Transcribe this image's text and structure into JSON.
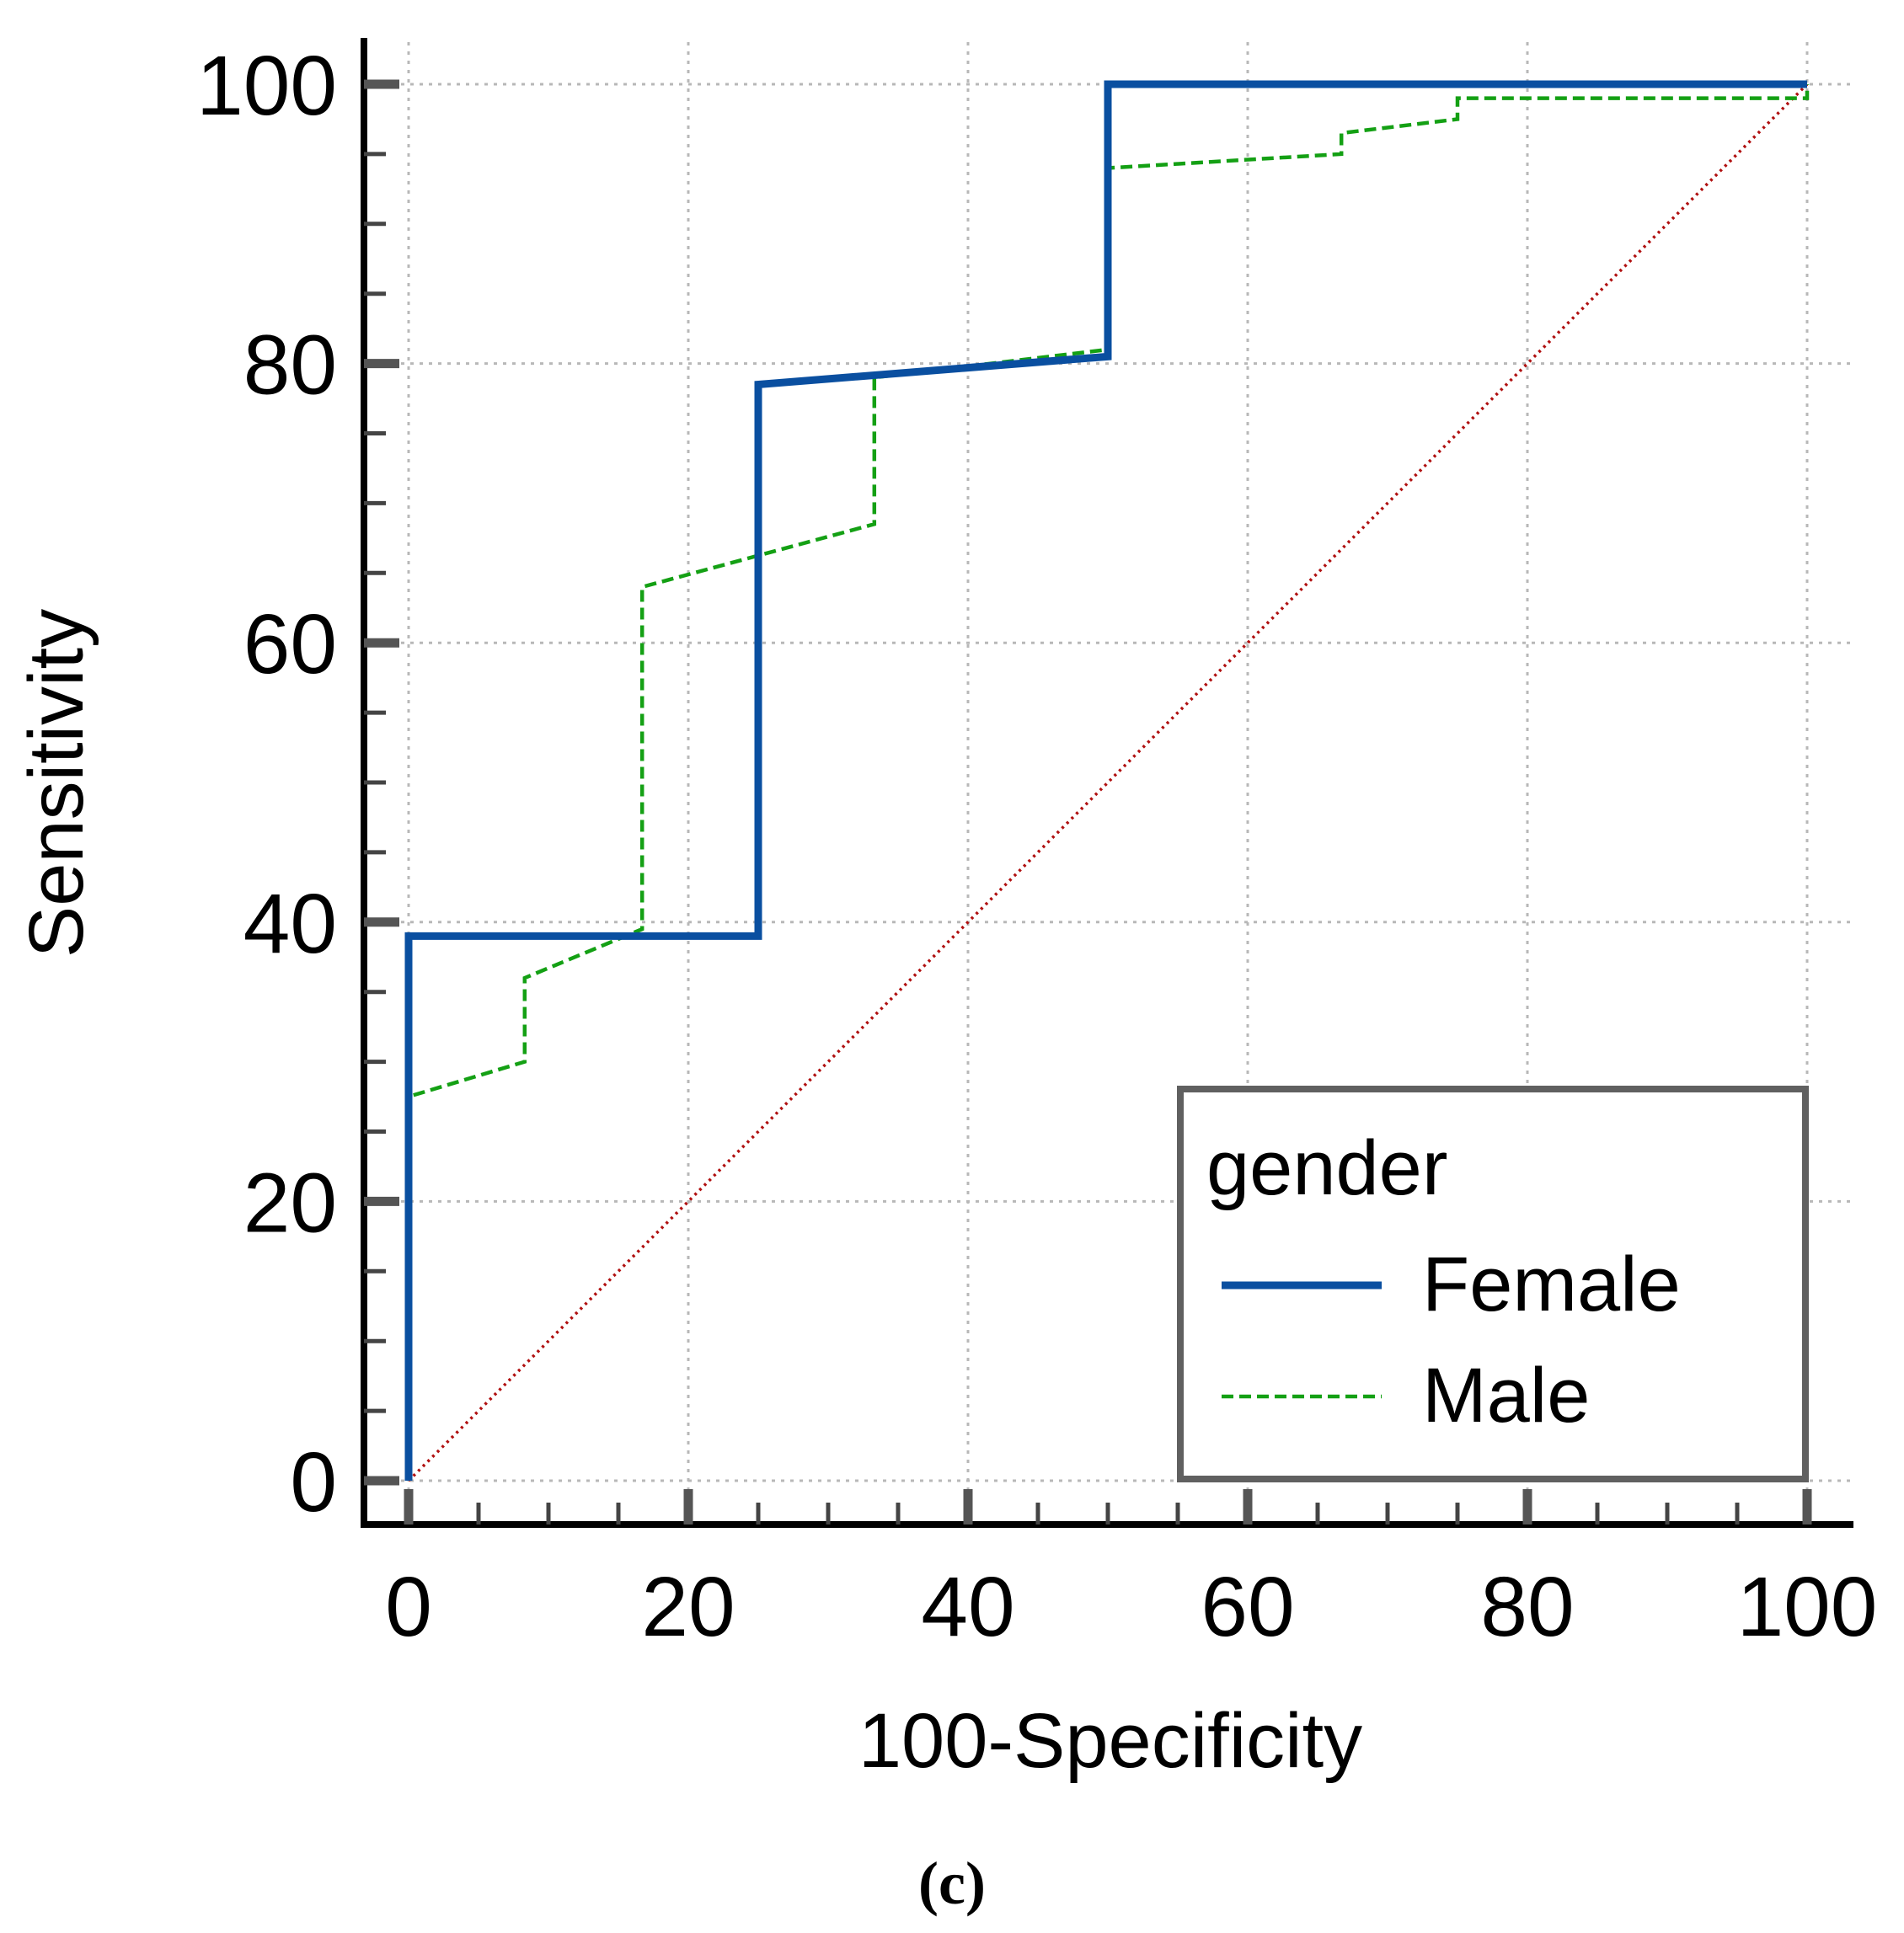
{
  "chart_data": {
    "type": "line",
    "xlabel": "100-Specificity",
    "ylabel": "Sensitivity",
    "xlim": [
      0,
      100
    ],
    "ylim": [
      0,
      100
    ],
    "x_ticks": [
      0,
      20,
      40,
      60,
      80,
      100
    ],
    "y_ticks": [
      0,
      20,
      40,
      60,
      80,
      100
    ],
    "x_tick_labels": [
      "0",
      "20",
      "40",
      "60",
      "80",
      "100"
    ],
    "y_tick_labels": [
      "0",
      "20",
      "40",
      "60",
      "80",
      "100"
    ],
    "grid": true,
    "legend": {
      "title": "gender",
      "placement": "bottom-right"
    },
    "series": [
      {
        "name": "Female",
        "color": "#0a4fa0",
        "style": "solid",
        "x": [
          0,
          0,
          25,
          25,
          50,
          50,
          100
        ],
        "y": [
          0,
          39,
          39,
          78.5,
          80.5,
          100,
          100
        ]
      },
      {
        "name": "Male",
        "color": "#14a014",
        "style": "dashed",
        "x": [
          0,
          0,
          8.3,
          8.3,
          16.7,
          16.7,
          33.3,
          33.3,
          50,
          50,
          66.7,
          66.7,
          75,
          75,
          100,
          100
        ],
        "y": [
          0,
          27.5,
          30,
          36,
          39.5,
          64,
          68.5,
          79,
          81,
          94,
          95,
          96.5,
          97.5,
          99,
          99,
          100
        ]
      },
      {
        "name": "",
        "color": "#b01010",
        "style": "dotted",
        "x": [
          0,
          100
        ],
        "y": [
          0,
          100
        ]
      }
    ],
    "panel_label": "(c)"
  }
}
